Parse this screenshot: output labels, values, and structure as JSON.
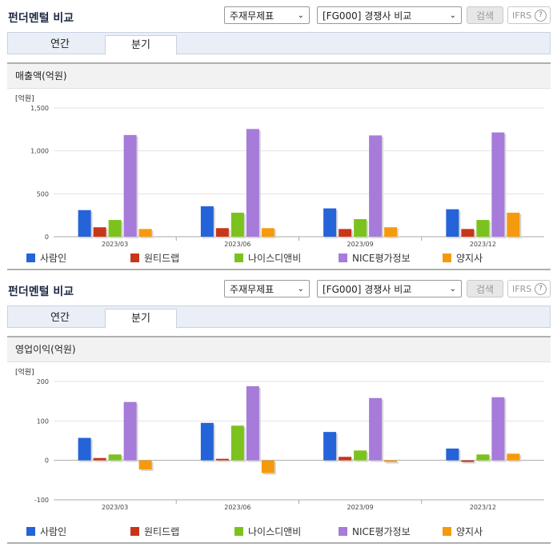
{
  "sections": [
    {
      "title": "펀더멘털 비교",
      "select1": "주재무제표",
      "select2": "[FG000] 경쟁사 비교",
      "search_label": "검색",
      "ifrs_label": "IFRS",
      "ifrs_help": "?",
      "tabs": [
        "연간",
        "분기"
      ],
      "active_tab": "분기",
      "chart_title": "매출액(억원)",
      "unit": "[억원]"
    },
    {
      "title": "펀더멘털 비교",
      "select1": "주재무제표",
      "select2": "[FG000] 경쟁사 비교",
      "search_label": "검색",
      "ifrs_label": "IFRS",
      "ifrs_help": "?",
      "tabs": [
        "연간",
        "분기"
      ],
      "active_tab": "분기",
      "chart_title": "영업이익(억원)",
      "unit": "[억원]"
    }
  ],
  "colors": {
    "사람인": "#2563d8",
    "원티드랩": "#c8361a",
    "나이스디앤비": "#7cc21e",
    "NICE평가정보": "#a67bd9",
    "양지사": "#f59a0d"
  },
  "chart_data": [
    {
      "type": "bar",
      "title": "매출액(억원)",
      "ylabel": "[억원]",
      "categories": [
        "2023/03",
        "2023/06",
        "2023/09",
        "2023/12"
      ],
      "ylim": [
        0,
        1500
      ],
      "yticks": [
        0,
        500,
        1000,
        1500
      ],
      "ytick_labels": [
        "0",
        "500",
        "1,000",
        "1,500"
      ],
      "legend": "bottom",
      "series": [
        {
          "name": "사람인",
          "values": [
            310,
            355,
            330,
            320
          ]
        },
        {
          "name": "원티드랩",
          "values": [
            110,
            100,
            90,
            90
          ]
        },
        {
          "name": "나이스디앤비",
          "values": [
            195,
            280,
            205,
            195
          ]
        },
        {
          "name": "NICE평가정보",
          "values": [
            1185,
            1255,
            1180,
            1215
          ]
        },
        {
          "name": "양지사",
          "values": [
            90,
            100,
            110,
            280
          ]
        }
      ]
    },
    {
      "type": "bar",
      "title": "영업이익(억원)",
      "ylabel": "[억원]",
      "categories": [
        "2023/03",
        "2023/06",
        "2023/09",
        "2023/12"
      ],
      "ylim": [
        -100,
        200
      ],
      "yticks": [
        -100,
        0,
        100,
        200
      ],
      "ytick_labels": [
        "-100",
        "0",
        "100",
        "200"
      ],
      "legend": "bottom",
      "series": [
        {
          "name": "사람인",
          "values": [
            57,
            95,
            72,
            30
          ]
        },
        {
          "name": "원티드랩",
          "values": [
            6,
            4,
            9,
            -4
          ]
        },
        {
          "name": "나이스디앤비",
          "values": [
            15,
            88,
            25,
            15
          ]
        },
        {
          "name": "NICE평가정보",
          "values": [
            148,
            188,
            158,
            160
          ]
        },
        {
          "name": "양지사",
          "values": [
            -23,
            -32,
            -4,
            17
          ]
        }
      ]
    }
  ]
}
